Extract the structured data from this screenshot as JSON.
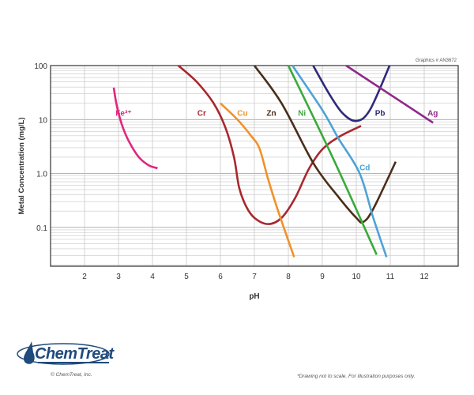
{
  "chart_data": {
    "type": "line",
    "title": "",
    "xlabel": "pH",
    "ylabel": "Metal Concentration (mg/L)",
    "xlim": [
      1,
      13
    ],
    "ylim": [
      0.019,
      100
    ],
    "yscale": "log",
    "grid": true,
    "xticks": [
      2,
      3,
      4,
      5,
      6,
      7,
      8,
      9,
      10,
      11,
      12
    ],
    "yticks": [
      {
        "value": 100,
        "label": "100"
      },
      {
        "value": 10,
        "label": "10"
      },
      {
        "value": 1,
        "label": "1.0"
      },
      {
        "value": 0.1,
        "label": "0.1"
      }
    ],
    "series": [
      {
        "name": "Fe3+",
        "label": "Fe³⁺",
        "color": "#e0267f",
        "label_at": [
          3.15,
          13.5
        ],
        "points": [
          [
            2.86,
            39
          ],
          [
            2.95,
            18
          ],
          [
            3.1,
            8
          ],
          [
            3.3,
            4
          ],
          [
            3.6,
            2
          ],
          [
            3.9,
            1.4
          ],
          [
            4.15,
            1.25
          ]
        ]
      },
      {
        "name": "Cr",
        "label": "Cr",
        "color": "#a8282e",
        "label_at": [
          5.45,
          13.5
        ],
        "points": [
          [
            4.76,
            100
          ],
          [
            5.3,
            50
          ],
          [
            5.8,
            20
          ],
          [
            6.15,
            7
          ],
          [
            6.4,
            2
          ],
          [
            6.55,
            0.55
          ],
          [
            6.75,
            0.25
          ],
          [
            7.0,
            0.15
          ],
          [
            7.4,
            0.115
          ],
          [
            7.8,
            0.15
          ],
          [
            8.2,
            0.35
          ],
          [
            8.6,
            1.2
          ],
          [
            9.0,
            2.8
          ],
          [
            9.5,
            4.8
          ],
          [
            10.14,
            7.6
          ]
        ]
      },
      {
        "name": "Cu",
        "label": "Cu",
        "color": "#f0922a",
        "label_at": [
          6.65,
          13.5
        ],
        "points": [
          [
            6.0,
            20
          ],
          [
            6.5,
            10
          ],
          [
            6.9,
            5
          ],
          [
            7.15,
            2.9
          ],
          [
            7.4,
            0.8
          ],
          [
            7.7,
            0.2
          ],
          [
            8.17,
            0.028
          ]
        ]
      },
      {
        "name": "Zn",
        "label": "Zn",
        "color": "#4a2e1a",
        "label_at": [
          7.5,
          13.5
        ],
        "points": [
          [
            7.0,
            100
          ],
          [
            7.8,
            20
          ],
          [
            8.75,
            1.5
          ],
          [
            9.5,
            0.35
          ],
          [
            10.0,
            0.15
          ],
          [
            10.2,
            0.125
          ],
          [
            10.5,
            0.22
          ],
          [
            11.16,
            1.65
          ]
        ]
      },
      {
        "name": "Ni",
        "label": "Ni",
        "color": "#3aaa3a",
        "label_at": [
          8.4,
          13.5
        ],
        "points": [
          [
            8.0,
            100
          ],
          [
            9.3,
            2
          ],
          [
            10.6,
            0.031
          ]
        ]
      },
      {
        "name": "Cd",
        "label": "Cd",
        "color": "#4da3d8",
        "label_at": [
          10.25,
          1.3
        ],
        "points": [
          [
            8.12,
            100
          ],
          [
            9.0,
            15
          ],
          [
            9.47,
            4.5
          ],
          [
            10.1,
            1.0
          ],
          [
            10.5,
            0.15
          ],
          [
            10.89,
            0.028
          ]
        ]
      },
      {
        "name": "Pb",
        "label": "Pb",
        "color": "#2e2a7a",
        "label_at": [
          10.7,
          13.5
        ],
        "points": [
          [
            8.73,
            100
          ],
          [
            9.2,
            30
          ],
          [
            9.6,
            13
          ],
          [
            10.0,
            9.4
          ],
          [
            10.4,
            15
          ],
          [
            10.98,
            100
          ]
        ]
      },
      {
        "name": "Ag",
        "label": "Ag",
        "color": "#8e2a8a",
        "label_at": [
          12.25,
          13.5
        ],
        "points": [
          [
            9.7,
            100
          ],
          [
            12.26,
            8.7
          ]
        ]
      }
    ]
  },
  "graphics_id": "Graphics # AN3672",
  "logo": {
    "name": "ChemTreat",
    "color": "#1f4a7c"
  },
  "copyright": "© ChemTreat, Inc.",
  "note": "*Drawing not to scale. For illustration purposes only."
}
